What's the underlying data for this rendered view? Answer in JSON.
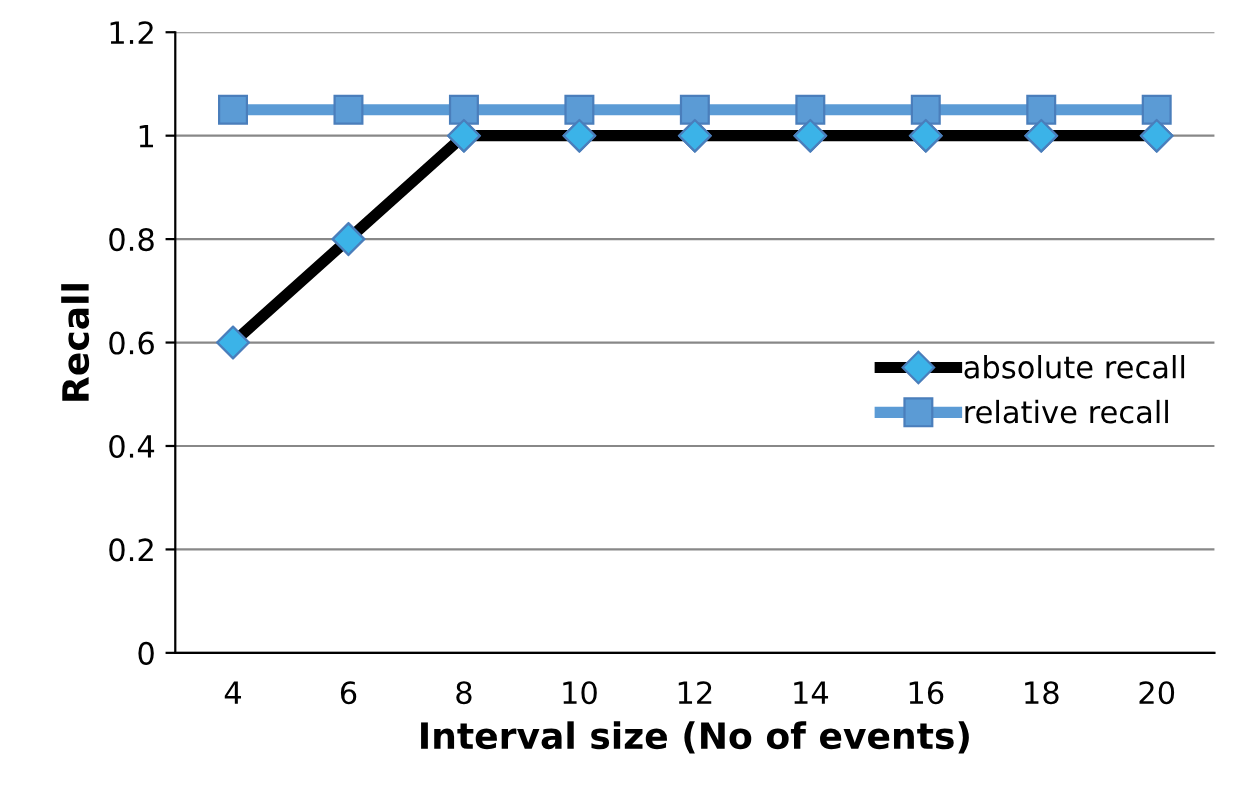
{
  "chart_data": {
    "type": "line",
    "xlabel": "Interval size (No of events)",
    "ylabel": "Recall",
    "categories": [
      "4",
      "6",
      "8",
      "10",
      "12",
      "14",
      "16",
      "18",
      "20"
    ],
    "series": [
      {
        "name": "absolute recall",
        "color": "#000000",
        "colors": [
          "#3bb3e8",
          "#3bb3e8",
          "#3bb3e8",
          "#3bb3e8",
          "#3bb3e8",
          "#3bb3e8",
          "#3bb3e8",
          "#3bb3e8",
          "#3bb3e8"
        ],
        "marker": "diamond",
        "values": [
          0.6,
          0.8,
          1,
          1,
          1,
          1,
          1,
          1,
          1
        ]
      },
      {
        "name": "relative recall",
        "color": "#5b9bd5",
        "marker": "square",
        "values": [
          1.05,
          1.05,
          1.05,
          1.05,
          1.05,
          1.05,
          1.05,
          1.05,
          1.05
        ]
      }
    ],
    "ylim": [
      0,
      1.2
    ],
    "yticks": [
      0,
      0.2,
      0.4,
      0.6,
      0.8,
      1,
      1.2
    ],
    "grid": "y",
    "legend": "right",
    "line_style": "solid"
  }
}
